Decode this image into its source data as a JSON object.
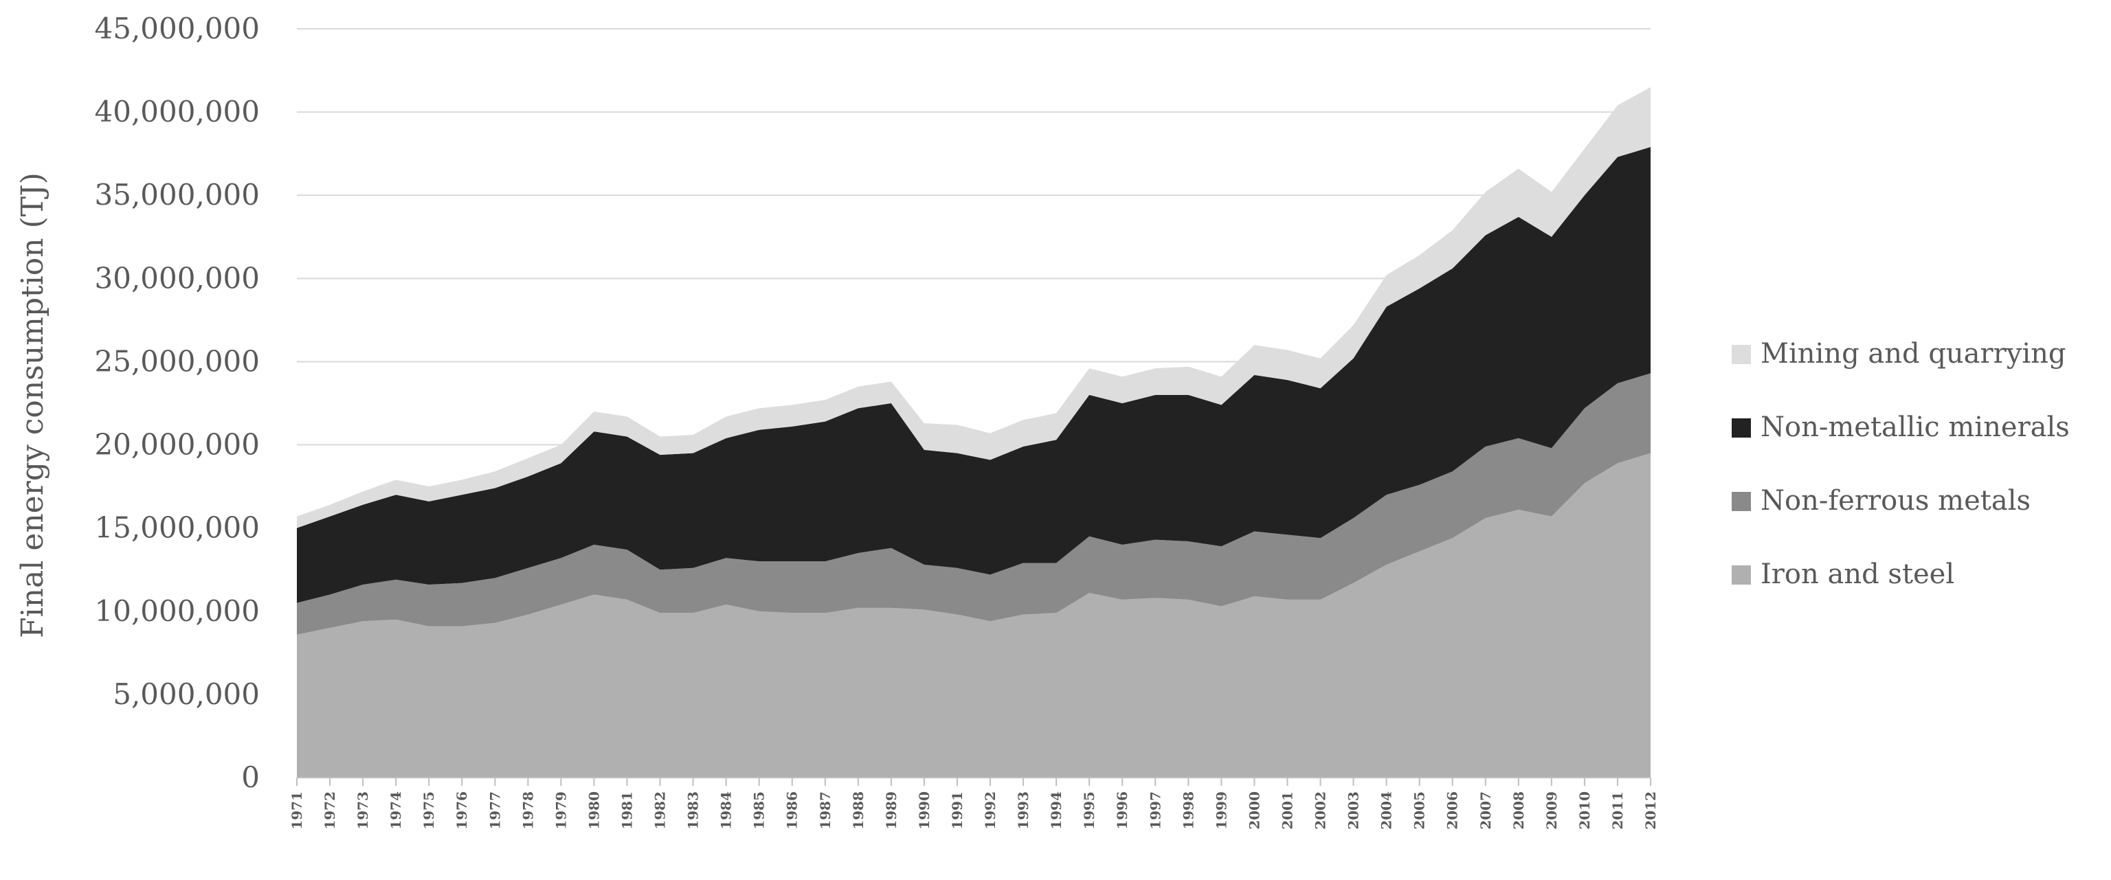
{
  "chart_data": {
    "type": "area",
    "stacked": true,
    "title": "",
    "xlabel": "",
    "ylabel": "Final energy consumption (TJ)",
    "ylim": [
      0,
      45000000
    ],
    "yticks": [
      0,
      5000000,
      10000000,
      15000000,
      20000000,
      25000000,
      30000000,
      35000000,
      40000000,
      45000000
    ],
    "ytick_labels": [
      "0",
      "5,000,000",
      "10,000,000",
      "15,000,000",
      "20,000,000",
      "25,000,000",
      "30,000,000",
      "35,000,000",
      "40,000,000",
      "45,000,000"
    ],
    "grid": "horizontal",
    "legend_position": "right",
    "categories": [
      "1971",
      "1972",
      "1973",
      "1974",
      "1975",
      "1976",
      "1977",
      "1978",
      "1979",
      "1980",
      "1981",
      "1982",
      "1983",
      "1984",
      "1985",
      "1986",
      "1987",
      "1988",
      "1989",
      "1990",
      "1991",
      "1992",
      "1993",
      "1994",
      "1995",
      "1996",
      "1997",
      "1998",
      "1999",
      "2000",
      "2001",
      "2002",
      "2003",
      "2004",
      "2005",
      "2006",
      "2007",
      "2008",
      "2009",
      "2010",
      "2011",
      "2012"
    ],
    "series": [
      {
        "name": "Iron and steel",
        "color": "#b0b0b0",
        "values": [
          8600000,
          9000000,
          9400000,
          9500000,
          9100000,
          9100000,
          9300000,
          9800000,
          10400000,
          11000000,
          10700000,
          9900000,
          9900000,
          10400000,
          10000000,
          9900000,
          9900000,
          10200000,
          10200000,
          10100000,
          9800000,
          9400000,
          9800000,
          9900000,
          11100000,
          10700000,
          10800000,
          10700000,
          10300000,
          10900000,
          10700000,
          10700000,
          11700000,
          12800000,
          13600000,
          14400000,
          15600000,
          16100000,
          15700000,
          17700000,
          18900000,
          19500000
        ]
      },
      {
        "name": "Non-ferrous metals",
        "color": "#8a8a8a",
        "values": [
          1900000,
          2000000,
          2200000,
          2400000,
          2500000,
          2600000,
          2700000,
          2800000,
          2800000,
          3000000,
          3000000,
          2600000,
          2700000,
          2800000,
          3000000,
          3100000,
          3100000,
          3300000,
          3600000,
          2700000,
          2800000,
          2800000,
          3100000,
          3000000,
          3400000,
          3300000,
          3500000,
          3500000,
          3600000,
          3900000,
          3900000,
          3700000,
          3900000,
          4200000,
          4000000,
          4000000,
          4300000,
          4300000,
          4100000,
          4500000,
          4800000,
          4800000
        ]
      },
      {
        "name": "Non-metallic minerals",
        "color": "#222222",
        "values": [
          4500000,
          4700000,
          4800000,
          5100000,
          5000000,
          5300000,
          5400000,
          5500000,
          5700000,
          6800000,
          6800000,
          6900000,
          6900000,
          7200000,
          7900000,
          8100000,
          8400000,
          8700000,
          8700000,
          6900000,
          6900000,
          6900000,
          7000000,
          7400000,
          8500000,
          8500000,
          8700000,
          8800000,
          8500000,
          9400000,
          9300000,
          9000000,
          9600000,
          11300000,
          11800000,
          12200000,
          12700000,
          13300000,
          12700000,
          12800000,
          13600000,
          13600000
        ]
      },
      {
        "name": "Mining and quarrying",
        "color": "#dddddd",
        "values": [
          700000,
          700000,
          800000,
          900000,
          900000,
          900000,
          1000000,
          1100000,
          1100000,
          1200000,
          1200000,
          1100000,
          1100000,
          1300000,
          1300000,
          1300000,
          1300000,
          1300000,
          1300000,
          1600000,
          1700000,
          1600000,
          1600000,
          1600000,
          1600000,
          1600000,
          1600000,
          1700000,
          1700000,
          1800000,
          1800000,
          1800000,
          2000000,
          1900000,
          2000000,
          2300000,
          2600000,
          2900000,
          2700000,
          2800000,
          3100000,
          3600000
        ]
      }
    ]
  }
}
